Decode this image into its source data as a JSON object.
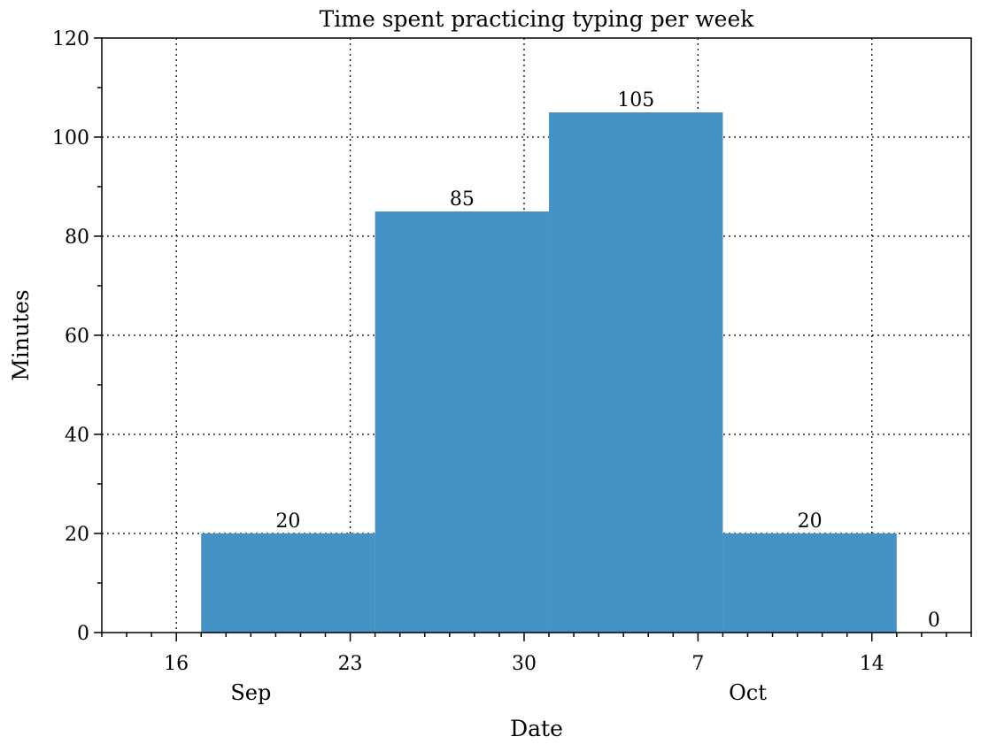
{
  "chart_data": {
    "type": "bar",
    "title": "Time spent practicing typing per week",
    "xlabel": "Date",
    "ylabel": "Minutes",
    "ylim": [
      0,
      120
    ],
    "yticks": [
      0,
      20,
      40,
      60,
      80,
      100,
      120
    ],
    "xlim": [
      "2024-09-13",
      "2024-10-18"
    ],
    "xticks": [
      {
        "date": "2024-09-16",
        "label": "16"
      },
      {
        "date": "2024-09-23",
        "label": "23"
      },
      {
        "date": "2024-09-30",
        "label": "30"
      },
      {
        "date": "2024-10-07",
        "label": "7"
      },
      {
        "date": "2024-10-14",
        "label": "14"
      }
    ],
    "month_labels": [
      {
        "date": "2024-09-19",
        "label": "Sep"
      },
      {
        "date": "2024-10-09",
        "label": "Oct"
      }
    ],
    "grid": true,
    "bar_color": "#4592c6",
    "series": [
      {
        "bins": [
          {
            "start": "2024-09-17",
            "end": "2024-09-24",
            "value": 20,
            "label": "20"
          },
          {
            "start": "2024-09-24",
            "end": "2024-10-01",
            "value": 85,
            "label": "85"
          },
          {
            "start": "2024-10-01",
            "end": "2024-10-08",
            "value": 105,
            "label": "105"
          },
          {
            "start": "2024-10-08",
            "end": "2024-10-15",
            "value": 20,
            "label": "20"
          },
          {
            "start": "2024-10-15",
            "end": "2024-10-22",
            "value": 0,
            "label": "0"
          }
        ]
      }
    ]
  }
}
